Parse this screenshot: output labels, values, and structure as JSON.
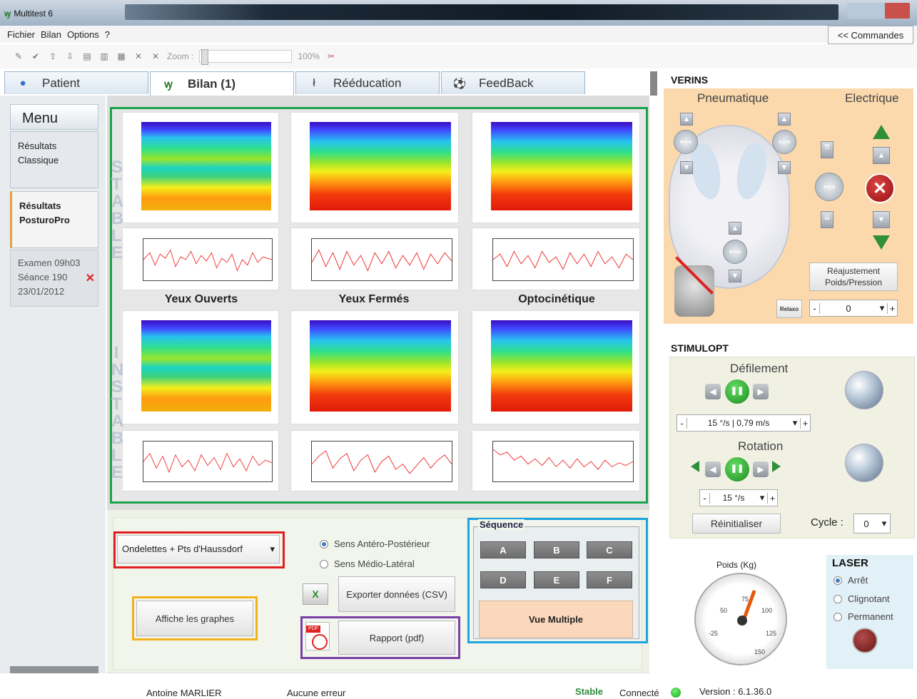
{
  "window": {
    "title": "Multitest 6"
  },
  "menu": {
    "items": [
      "Fichier",
      "Bilan",
      "Options",
      "?"
    ]
  },
  "commands_button": "<< Commandes",
  "toolbar": {
    "zoom_label": "Zoom :",
    "zoom_value": "100%"
  },
  "tabs": [
    {
      "label": "Patient",
      "icon": "user-icon"
    },
    {
      "label": "Bilan (1)",
      "icon": "feet-icon"
    },
    {
      "label": "Rééducation",
      "icon": "walker-icon"
    },
    {
      "label": "FeedBack",
      "icon": "ball-icon"
    }
  ],
  "left_menu": {
    "title": "Menu",
    "items": [
      "Résultats\nClassique",
      "Résultats\nPosturoPro"
    ],
    "exam": {
      "line1": "Examen 09h03",
      "line2": "Séance 190",
      "line3": "23/01/2012"
    }
  },
  "graphs": {
    "row_labels": [
      "STABLE",
      "INSTABLE"
    ],
    "columns": [
      "Yeux Ouverts",
      "Yeux Fermés",
      "Optocinétique"
    ]
  },
  "controls": {
    "method_select": "Ondelettes + Pts d'Haussdorf",
    "radio_ap": "Sens Antéro-Postérieur",
    "radio_ml": "Sens Médio-Latéral",
    "export_button": "Exporter données (CSV)",
    "show_graphs_button": "Affiche les graphes",
    "report_button": "Rapport (pdf)",
    "sequence": {
      "title": "Séquence",
      "buttons": [
        "A",
        "B",
        "C",
        "D",
        "E",
        "F"
      ],
      "multi_view": "Vue Multiple"
    }
  },
  "verins": {
    "title": "VERINS",
    "pneumatique": "Pneumatique",
    "electrique": "Electrique",
    "readjust_button": "Réajustement\nPoids/Pression",
    "relax_button": "Relaxo",
    "spin_value": "0"
  },
  "stimulopt": {
    "title": "STIMULOPT",
    "defilement": "Défilement",
    "defilement_value": "15 °/s  |  0,79 m/s",
    "rotation": "Rotation",
    "rotation_value": "15 °/s",
    "reset_button": "Réinitialiser",
    "cycle_label": "Cycle :",
    "cycle_value": "0"
  },
  "poids": {
    "label": "Poids (Kg)",
    "ticks": [
      "-25",
      "50",
      "75",
      "100",
      "125",
      "150"
    ]
  },
  "laser": {
    "title": "LASER",
    "options": [
      "Arrêt",
      "Clignotant",
      "Permanent"
    ],
    "selected": 0
  },
  "status": {
    "user": "Antoine MARLIER",
    "error": "Aucune erreur",
    "state": "Stable",
    "connection": "Connecté",
    "version": "Version : 6.1.36.0"
  }
}
